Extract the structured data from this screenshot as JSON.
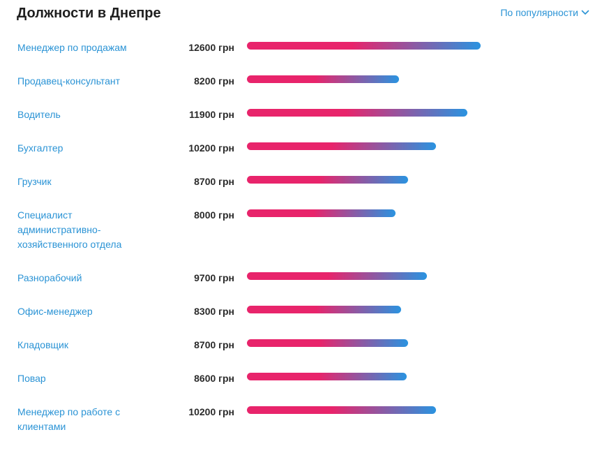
{
  "header": {
    "title": "Должности в Днепре",
    "sort_label": "По популярности"
  },
  "colors": {
    "link": "#2a93d5",
    "bar_start": "#e8246b",
    "bar_end": "#2a93e0",
    "title": "#1f1f1f",
    "salary": "#2b2b2b"
  },
  "icons": {
    "sort": "chevron-down-icon"
  },
  "chart_data": {
    "type": "bar",
    "orientation": "horizontal",
    "title": "Должности в Днепре",
    "unit": "грн",
    "xlim": [
      0,
      12600
    ],
    "categories": [
      "Менеджер по продажам",
      "Продавец-консультант",
      "Водитель",
      "Бухгалтер",
      "Грузчик",
      "Специалист административно-хозяйственного отдела",
      "Разнорабочий",
      "Офис-менеджер",
      "Кладовщик",
      "Повар",
      "Менеджер по работе с клиентами"
    ],
    "values": [
      12600,
      8200,
      11900,
      10200,
      8700,
      8000,
      9700,
      8300,
      8700,
      8600,
      10200
    ],
    "labels": [
      "12600 грн",
      "8200 грн",
      "11900 грн",
      "10200 грн",
      "8700 грн",
      "8000 грн",
      "9700 грн",
      "8300 грн",
      "8700 грн",
      "8600 грн",
      "10200 грн"
    ]
  }
}
